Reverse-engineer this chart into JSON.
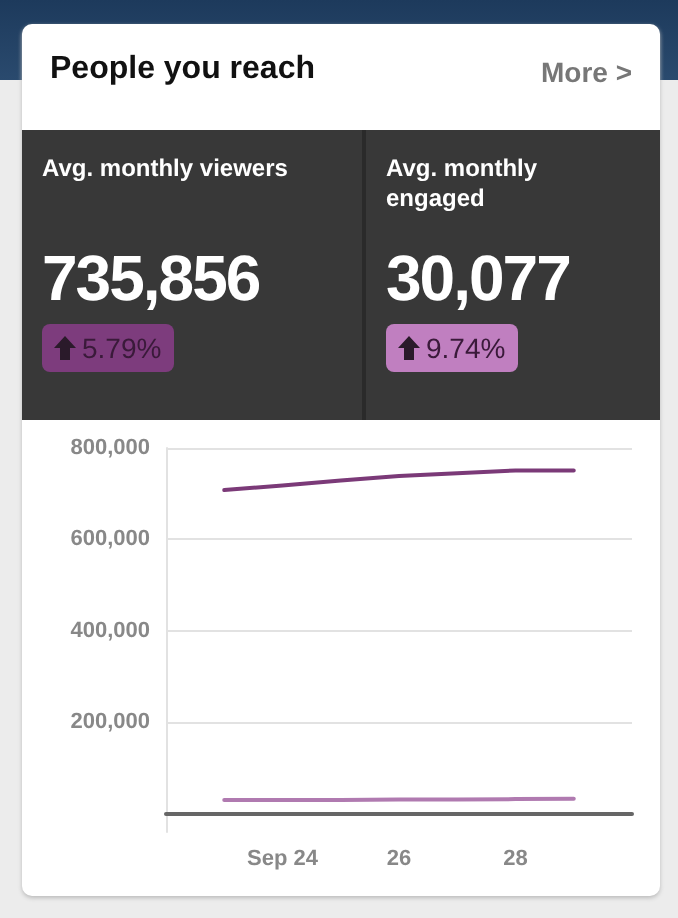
{
  "chart_data": {
    "type": "line",
    "title": "People you reach",
    "annotations": [
      "More >",
      "Avg. monthly viewers",
      "735,856",
      "5.79%",
      "Avg. monthly engaged",
      "30,077",
      "9.74%"
    ],
    "x": [
      "--09-23",
      "--09-24",
      "--09-25",
      "--09-26",
      "--09-27",
      "--09-28",
      "--09-29"
    ],
    "series": [
      {
        "color": "#7b3a78",
        "values": [
          708000,
          718000,
          729000,
          739000,
          745000,
          751000,
          751000
        ]
      },
      {
        "color": "#b07ab0",
        "values": [
          30000,
          30000,
          30000,
          31000,
          31000,
          32000,
          33000
        ]
      }
    ],
    "xlim": [
      "--09-22",
      "--09-30"
    ],
    "xticks": [
      {
        "value": "--09-24",
        "label": "Sep 24"
      },
      {
        "value": "--09-26",
        "label": "26"
      },
      {
        "value": "--09-28",
        "label": "28"
      }
    ],
    "ylim": [
      -40000,
      800000
    ],
    "yticks": [
      {
        "value": 200000,
        "label": "200,000"
      },
      {
        "value": 400000,
        "label": "400,000"
      },
      {
        "value": 600000,
        "label": "600,000"
      },
      {
        "value": 800000,
        "label": "800,000"
      }
    ],
    "grid": "y",
    "marker": "none",
    "line_style": "solid"
  }
}
